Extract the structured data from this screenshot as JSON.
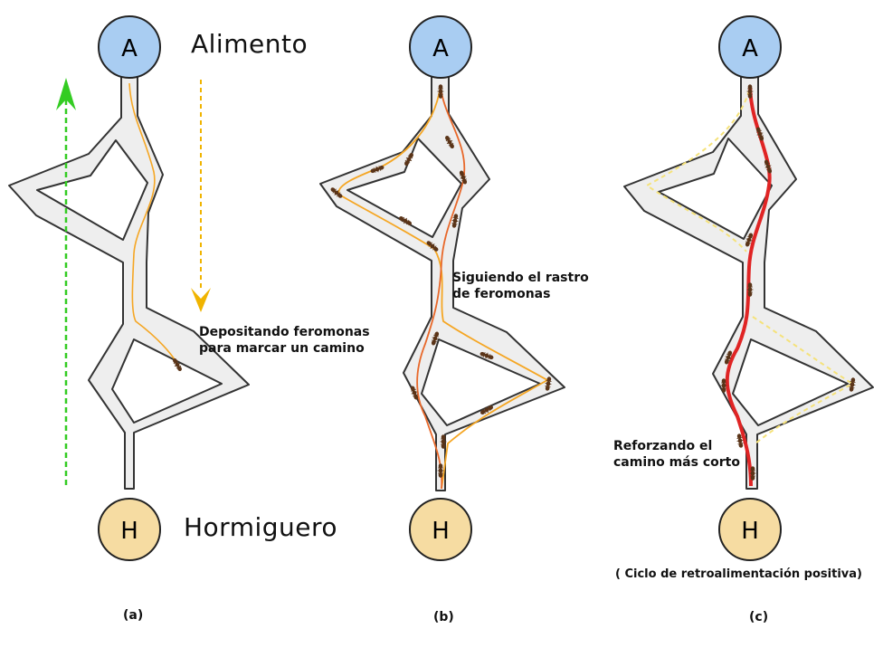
{
  "nodes": {
    "food": "A",
    "nest": "H"
  },
  "labels": {
    "food": "Alimento",
    "nest": "Hormiguero",
    "depositing": [
      "Depositando feromonas",
      "para marcar un camino"
    ],
    "following": [
      "Siguiendo el rastro",
      "de feromonas"
    ],
    "reinforcing": [
      "Reforzando el",
      "camino más corto"
    ],
    "feedback": "( Ciclo de retroalimentación positiva)"
  },
  "panels": [
    "(a)",
    "(b)",
    "(c)"
  ],
  "colors": {
    "food_node": "#a9cdf2",
    "nest_node": "#f6dca2",
    "node_stroke": "#222222",
    "track_fill": "#eeeeee",
    "track_stroke": "#333333",
    "trail_orange": "#f5a623",
    "trail_dark_orange": "#e8682a",
    "trail_red": "#e02424",
    "trail_faded": "#f5e27a",
    "up_arrow": "#33cc22",
    "down_arrow": "#f0b400",
    "ant": "#5a3418"
  }
}
